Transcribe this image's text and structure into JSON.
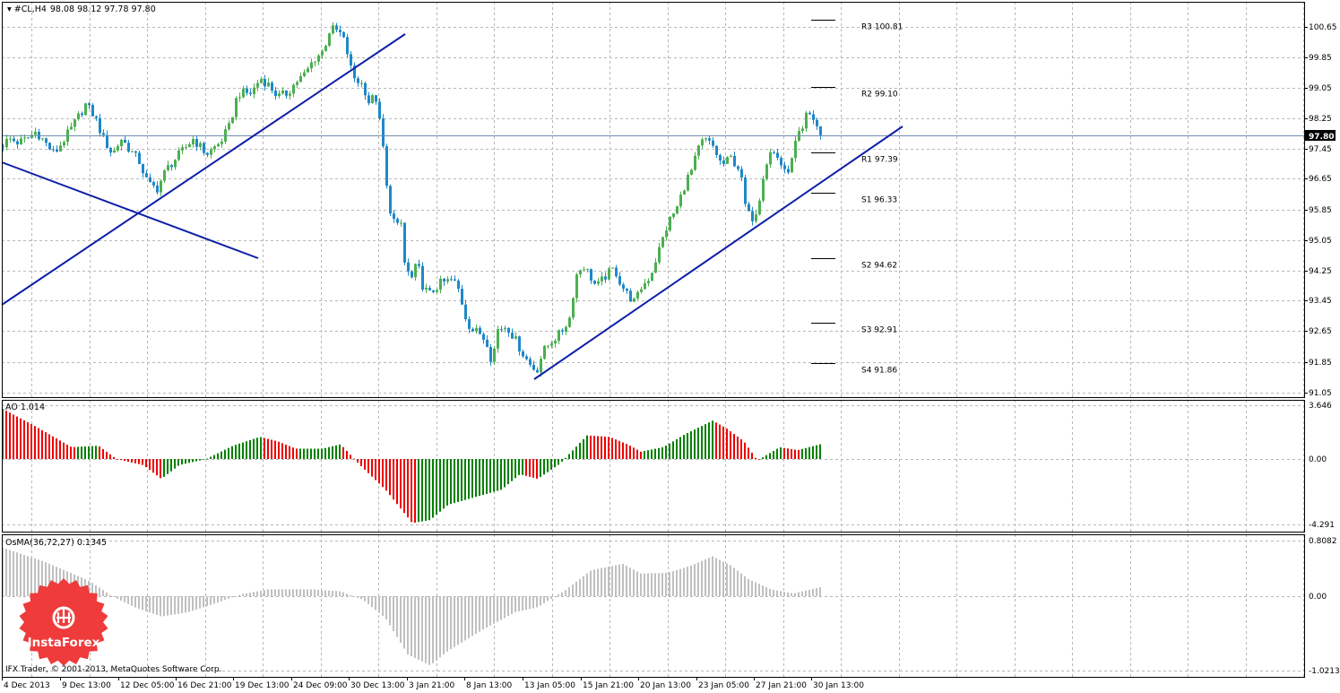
{
  "header": {
    "symbol_label": "#CL,H4",
    "ohlc": "98.08 98.12 97.78 97.80"
  },
  "colors": {
    "bull": "#4caf50",
    "bear": "#1e88c8",
    "trendline": "#0d1fa8",
    "grid": "#b8b8b8",
    "ao_up": "#008000",
    "ao_down": "#ee0000",
    "osma": "#c0c0c0",
    "price_line": "#6f8fb0",
    "logo": "#ef3b3b"
  },
  "footer": {
    "copyright": "IFX Trader, © 2001-2013, MetaQuotes Software Corp."
  },
  "logo": {
    "text": "InstaForex",
    "icon": "instaforex-emblem-icon"
  },
  "chart_data": [
    {
      "type": "candlestick",
      "name": "#CL,H4",
      "ylim": [
        91.05,
        100.9
      ],
      "y_ticks": [
        "100.65",
        "99.85",
        "99.05",
        "98.25",
        "97.45",
        "96.65",
        "95.85",
        "95.05",
        "94.25",
        "93.45",
        "92.65",
        "91.85",
        "91.05"
      ],
      "current_price": "97.80",
      "x_labels": [
        "4 Dec 2013",
        "9 Dec 13:00",
        "12 Dec 05:00",
        "16 Dec 21:00",
        "19 Dec 13:00",
        "24 Dec 09:00",
        "30 Dec 13:00",
        "3 Jan 21:00",
        "8 Jan 13:00",
        "13 Jan 05:00",
        "15 Jan 21:00",
        "20 Jan 13:00",
        "23 Jan 05:00",
        "27 Jan 21:00",
        "30 Jan 13:00"
      ],
      "path": [
        [
          0,
          97.5
        ],
        [
          10,
          97.7
        ],
        [
          20,
          97.6
        ],
        [
          30,
          97.7
        ],
        [
          40,
          97.9
        ],
        [
          60,
          97.3
        ],
        [
          80,
          98.0
        ],
        [
          95,
          98.6
        ],
        [
          105,
          98.3
        ],
        [
          115,
          97.7
        ],
        [
          125,
          97.3
        ],
        [
          135,
          97.7
        ],
        [
          145,
          97.4
        ],
        [
          155,
          97.1
        ],
        [
          165,
          96.5
        ],
        [
          175,
          96.4
        ],
        [
          185,
          96.9
        ],
        [
          200,
          97.3
        ],
        [
          215,
          97.7
        ],
        [
          230,
          97.3
        ],
        [
          245,
          97.6
        ],
        [
          255,
          98.0
        ],
        [
          265,
          98.9
        ],
        [
          280,
          98.9
        ],
        [
          290,
          99.3
        ],
        [
          300,
          99.1
        ],
        [
          310,
          98.8
        ],
        [
          320,
          98.9
        ],
        [
          330,
          99.2
        ],
        [
          340,
          99.4
        ],
        [
          350,
          99.8
        ],
        [
          360,
          100.0
        ],
        [
          368,
          100.6
        ],
        [
          378,
          100.5
        ],
        [
          385,
          100.2
        ],
        [
          390,
          99.6
        ],
        [
          395,
          99.3
        ],
        [
          405,
          99.1
        ],
        [
          412,
          98.6
        ],
        [
          418,
          98.9
        ],
        [
          422,
          98.3
        ],
        [
          428,
          97.3
        ],
        [
          432,
          96.1
        ],
        [
          438,
          95.6
        ],
        [
          445,
          95.3
        ],
        [
          452,
          94.3
        ],
        [
          460,
          94.0
        ],
        [
          465,
          94.5
        ],
        [
          470,
          93.9
        ],
        [
          478,
          93.6
        ],
        [
          490,
          93.9
        ],
        [
          505,
          94.0
        ],
        [
          512,
          93.7
        ],
        [
          518,
          93.1
        ],
        [
          525,
          92.7
        ],
        [
          535,
          92.6
        ],
        [
          545,
          92.3
        ],
        [
          548,
          91.8
        ],
        [
          555,
          92.7
        ],
        [
          565,
          92.8
        ],
        [
          575,
          92.4
        ],
        [
          582,
          92.1
        ],
        [
          590,
          91.8
        ],
        [
          598,
          91.6
        ],
        [
          605,
          92.1
        ],
        [
          615,
          92.4
        ],
        [
          625,
          92.6
        ],
        [
          635,
          93.0
        ],
        [
          642,
          94.1
        ],
        [
          650,
          94.4
        ],
        [
          658,
          94.1
        ],
        [
          665,
          93.8
        ],
        [
          675,
          94.1
        ],
        [
          685,
          94.3
        ],
        [
          692,
          93.9
        ],
        [
          700,
          93.6
        ],
        [
          708,
          93.4
        ],
        [
          715,
          93.8
        ],
        [
          725,
          94.1
        ],
        [
          735,
          94.8
        ],
        [
          745,
          95.5
        ],
        [
          755,
          95.9
        ],
        [
          765,
          96.6
        ],
        [
          772,
          96.9
        ],
        [
          778,
          97.4
        ],
        [
          785,
          97.7
        ],
        [
          795,
          97.5
        ],
        [
          805,
          97.0
        ],
        [
          815,
          97.2
        ],
        [
          825,
          96.9
        ],
        [
          832,
          95.8
        ],
        [
          838,
          95.6
        ],
        [
          845,
          95.9
        ],
        [
          852,
          96.9
        ],
        [
          860,
          97.4
        ],
        [
          868,
          97.2
        ],
        [
          875,
          96.8
        ],
        [
          882,
          97.0
        ],
        [
          888,
          97.7
        ],
        [
          895,
          97.9
        ],
        [
          900,
          98.4
        ],
        [
          908,
          98.2
        ],
        [
          915,
          97.8
        ]
      ],
      "pivots": [
        {
          "label": "R3",
          "value": "100.81"
        },
        {
          "label": "R2",
          "value": "99.10"
        },
        {
          "label": "R1",
          "value": "97.39"
        },
        {
          "label": "S1",
          "value": "96.33"
        },
        {
          "label": "S2",
          "value": "94.62"
        },
        {
          "label": "S3",
          "value": "92.91"
        },
        {
          "label": "S4",
          "value": "91.86"
        }
      ],
      "trendlines": [
        {
          "name": "falling-line",
          "from": [
            "4 Dec 2013",
            97.2
          ],
          "to": [
            "~20 Dec",
            94.6
          ]
        },
        {
          "name": "dec-support",
          "from": [
            "4 Dec 2013",
            93.45
          ],
          "to": [
            "~27 Dec",
            100.3
          ]
        },
        {
          "name": "jan-support",
          "from": [
            "13 Jan 05:00",
            91.45
          ],
          "to": [
            "~3 Feb",
            98.1
          ]
        }
      ]
    },
    {
      "type": "histogram",
      "name": "AO",
      "label": "AO 1.014",
      "ylim": [
        -4.291,
        3.646
      ],
      "y_ticks": [
        "3.646",
        "0.00",
        "-4.291"
      ],
      "path": [
        [
          0,
          3.5
        ],
        [
          40,
          2.2
        ],
        [
          80,
          0.8
        ],
        [
          110,
          0.9
        ],
        [
          130,
          0.0
        ],
        [
          160,
          -0.4
        ],
        [
          180,
          -1.3
        ],
        [
          200,
          -0.4
        ],
        [
          230,
          0.0
        ],
        [
          260,
          0.9
        ],
        [
          290,
          1.5
        ],
        [
          310,
          1.2
        ],
        [
          330,
          0.7
        ],
        [
          360,
          0.7
        ],
        [
          380,
          1.0
        ],
        [
          400,
          -0.3
        ],
        [
          430,
          -2.0
        ],
        [
          460,
          -4.2
        ],
        [
          480,
          -4.0
        ],
        [
          500,
          -3.0
        ],
        [
          530,
          -2.5
        ],
        [
          560,
          -2.0
        ],
        [
          580,
          -1.0
        ],
        [
          600,
          -1.3
        ],
        [
          625,
          -0.3
        ],
        [
          655,
          1.6
        ],
        [
          680,
          1.5
        ],
        [
          700,
          1.0
        ],
        [
          715,
          0.5
        ],
        [
          740,
          0.8
        ],
        [
          765,
          1.7
        ],
        [
          795,
          2.6
        ],
        [
          810,
          2.1
        ],
        [
          830,
          1.2
        ],
        [
          845,
          -0.1
        ],
        [
          870,
          0.8
        ],
        [
          890,
          0.6
        ],
        [
          915,
          1.0
        ]
      ]
    },
    {
      "type": "histogram",
      "name": "OsMA",
      "label": "OsMA(36,72,27) 0.1345",
      "ylim": [
        -1.0213,
        0.8082
      ],
      "y_ticks": [
        "0.8082",
        "0.00",
        "-1.0213"
      ],
      "path": [
        [
          0,
          0.72
        ],
        [
          50,
          0.5
        ],
        [
          100,
          0.22
        ],
        [
          125,
          0.0
        ],
        [
          150,
          -0.15
        ],
        [
          180,
          -0.28
        ],
        [
          210,
          -0.22
        ],
        [
          240,
          -0.1
        ],
        [
          270,
          0.03
        ],
        [
          300,
          0.1
        ],
        [
          350,
          0.1
        ],
        [
          380,
          0.07
        ],
        [
          405,
          -0.05
        ],
        [
          430,
          -0.3
        ],
        [
          455,
          -0.8
        ],
        [
          480,
          -0.95
        ],
        [
          500,
          -0.75
        ],
        [
          540,
          -0.45
        ],
        [
          575,
          -0.22
        ],
        [
          600,
          -0.15
        ],
        [
          630,
          0.08
        ],
        [
          660,
          0.38
        ],
        [
          695,
          0.47
        ],
        [
          715,
          0.33
        ],
        [
          745,
          0.34
        ],
        [
          770,
          0.44
        ],
        [
          795,
          0.58
        ],
        [
          815,
          0.45
        ],
        [
          835,
          0.25
        ],
        [
          860,
          0.1
        ],
        [
          885,
          0.04
        ],
        [
          915,
          0.13
        ]
      ]
    }
  ]
}
